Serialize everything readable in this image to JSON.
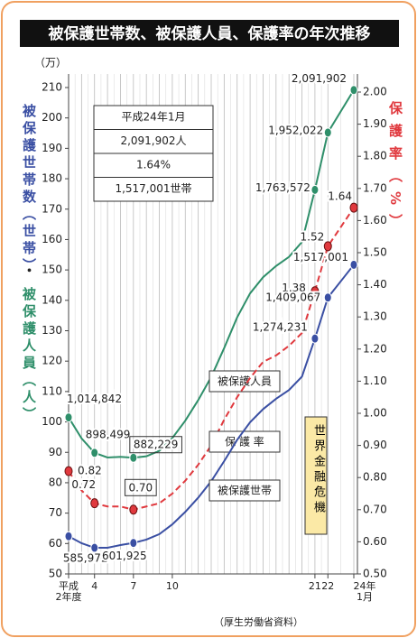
{
  "chart_data": {
    "type": "line",
    "title": "被保護世帯数、被保護人員、保護率の年次推移",
    "yunit": "（万）",
    "ylabel": {
      "households": "被保護世帯数（世帯）",
      "separator": "・",
      "persons": "被保護人員（人）"
    },
    "y2label": "保護率（%）",
    "source": "（厚生労働省資料）",
    "annotation": "世界金融危機",
    "info_box": [
      "平成24年1月",
      "2,091,902人",
      "1.64%",
      "1,517,001世帯"
    ],
    "x": [
      2,
      3,
      4,
      5,
      6,
      7,
      8,
      9,
      10,
      11,
      12,
      13,
      14,
      15,
      16,
      17,
      18,
      19,
      20,
      21,
      22,
      24
    ],
    "xlim": [
      2,
      24
    ],
    "xticks": [
      {
        "value": 2,
        "label": "平成\n2年度"
      },
      4,
      7,
      10,
      21,
      22,
      {
        "value": 24,
        "label": "24年\n1月"
      }
    ],
    "ylim": [
      50,
      210
    ],
    "yticks": [
      50,
      60,
      70,
      80,
      90,
      100,
      110,
      120,
      130,
      140,
      150,
      160,
      170,
      180,
      190,
      200,
      210
    ],
    "y2lim": [
      0.5,
      2.0
    ],
    "y2ticks": [
      {
        "value": 0.5,
        "label": "0.50"
      },
      {
        "value": 0.6,
        "label": "0.60"
      },
      {
        "value": 0.7,
        "label": "0.70"
      },
      {
        "value": 0.8,
        "label": "0.80"
      },
      {
        "value": 0.9,
        "label": "0.90"
      },
      {
        "value": 1.0,
        "label": "1.00"
      },
      {
        "value": 1.1,
        "label": "1.10"
      },
      {
        "value": 1.2,
        "label": "1.20"
      },
      {
        "value": 1.3,
        "label": "1.30"
      },
      {
        "value": 1.4,
        "label": "1.40"
      },
      {
        "value": 1.5,
        "label": "1.50"
      },
      {
        "value": 1.6,
        "label": "1.60"
      },
      {
        "value": 1.7,
        "label": "1.70"
      },
      {
        "value": 1.8,
        "label": "1.80"
      },
      {
        "value": 1.9,
        "label": "1.90"
      },
      {
        "value": 2.0,
        "label": "2.00"
      }
    ],
    "grid": true,
    "series": [
      {
        "name": "被保護人員",
        "color": "#2f8f6a",
        "values": [
          101.4842,
          94.6,
          89.8499,
          88.3,
          88.5,
          88.2229,
          88.7,
          90.5,
          94.7,
          100.4,
          107.2,
          114.8,
          124.3,
          134.4,
          142.3,
          147.6,
          151.3,
          154.3,
          159.2,
          176.3572,
          195.2022,
          209.1902
        ],
        "value_labels": [
          "1,014,842",
          null,
          "898,499",
          null,
          null,
          "882,229",
          null,
          null,
          null,
          null,
          null,
          null,
          null,
          null,
          null,
          null,
          null,
          null,
          null,
          "1,763,572",
          "1,952,022",
          "2,091,902"
        ]
      },
      {
        "name": "保 護 率",
        "color": "#e0393e",
        "axis": "y2",
        "dashed": true,
        "values": [
          0.82,
          0.76,
          0.72,
          0.71,
          0.71,
          0.7,
          0.71,
          0.72,
          0.75,
          0.79,
          0.84,
          0.9,
          0.98,
          1.05,
          1.11,
          1.16,
          1.18,
          1.21,
          1.25,
          1.38,
          1.52,
          1.64
        ],
        "value_labels": [
          "0.82",
          null,
          "0.72",
          null,
          null,
          "0.70",
          null,
          null,
          null,
          null,
          null,
          null,
          null,
          null,
          null,
          null,
          null,
          null,
          null,
          "1.38",
          "1.52",
          "1.64"
        ]
      },
      {
        "name": "被保護世帯",
        "color": "#3a4fa3",
        "values": [
          62.4,
          60.1,
          58.5972,
          58.6,
          59.5,
          60.1925,
          61.3,
          63.1,
          66.3,
          70.4,
          75.1,
          80.5,
          87.1,
          94.1,
          99.9,
          104.2,
          107.6,
          110.5,
          114.9,
          127.4231,
          140.9067,
          151.7001
        ],
        "value_labels": [
          null,
          null,
          "585,972",
          null,
          null,
          "601,925",
          null,
          null,
          null,
          null,
          null,
          null,
          null,
          null,
          null,
          null,
          null,
          null,
          null,
          "1,274,231",
          "1,409,067",
          "1,517,001"
        ]
      }
    ]
  }
}
